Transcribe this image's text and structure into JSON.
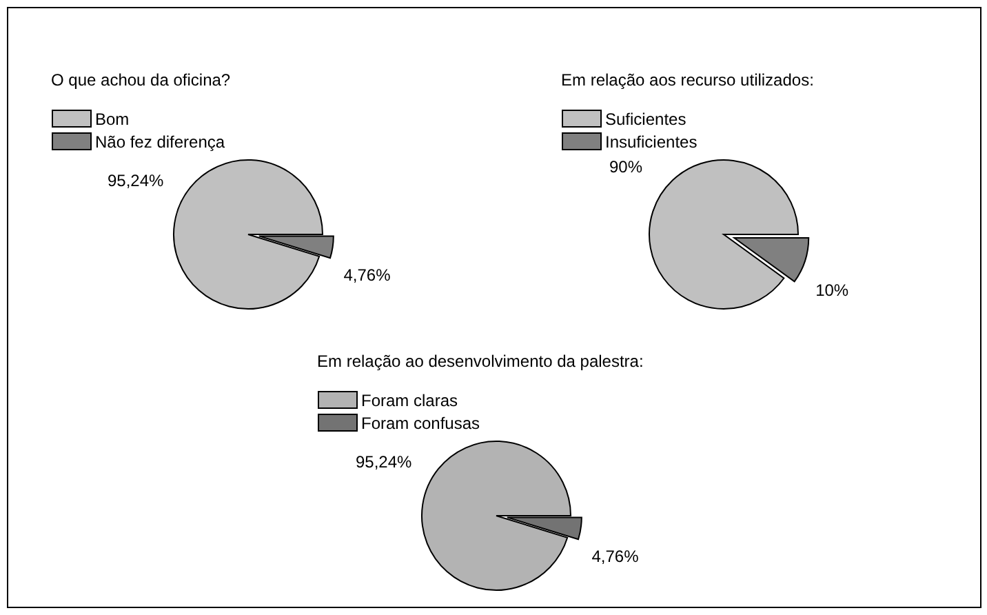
{
  "chart_data": [
    {
      "type": "pie",
      "title": "O que achou da oficina?",
      "categories": [
        "Bom",
        "Não fez diferença"
      ],
      "values": [
        95.24,
        4.76
      ],
      "colors": [
        "#c0c0c0",
        "#808080"
      ],
      "value_labels": [
        "95,24%",
        "4,76%"
      ],
      "legend": "top left"
    },
    {
      "type": "pie",
      "title": "Em relação aos recurso utilizados:",
      "categories": [
        "Suficientes",
        "Insuficientes"
      ],
      "values": [
        90,
        10
      ],
      "colors": [
        "#c0c0c0",
        "#808080"
      ],
      "value_labels": [
        "90%",
        "10%"
      ],
      "legend": "top left"
    },
    {
      "type": "pie",
      "title": "Em relação ao desenvolvimento da palestra:",
      "categories": [
        "Foram claras",
        "Foram confusas"
      ],
      "values": [
        95.24,
        4.76
      ],
      "colors": [
        "#b3b3b3",
        "#737373"
      ],
      "value_labels": [
        "95,24%",
        "4,76%"
      ],
      "legend": "top left"
    }
  ]
}
